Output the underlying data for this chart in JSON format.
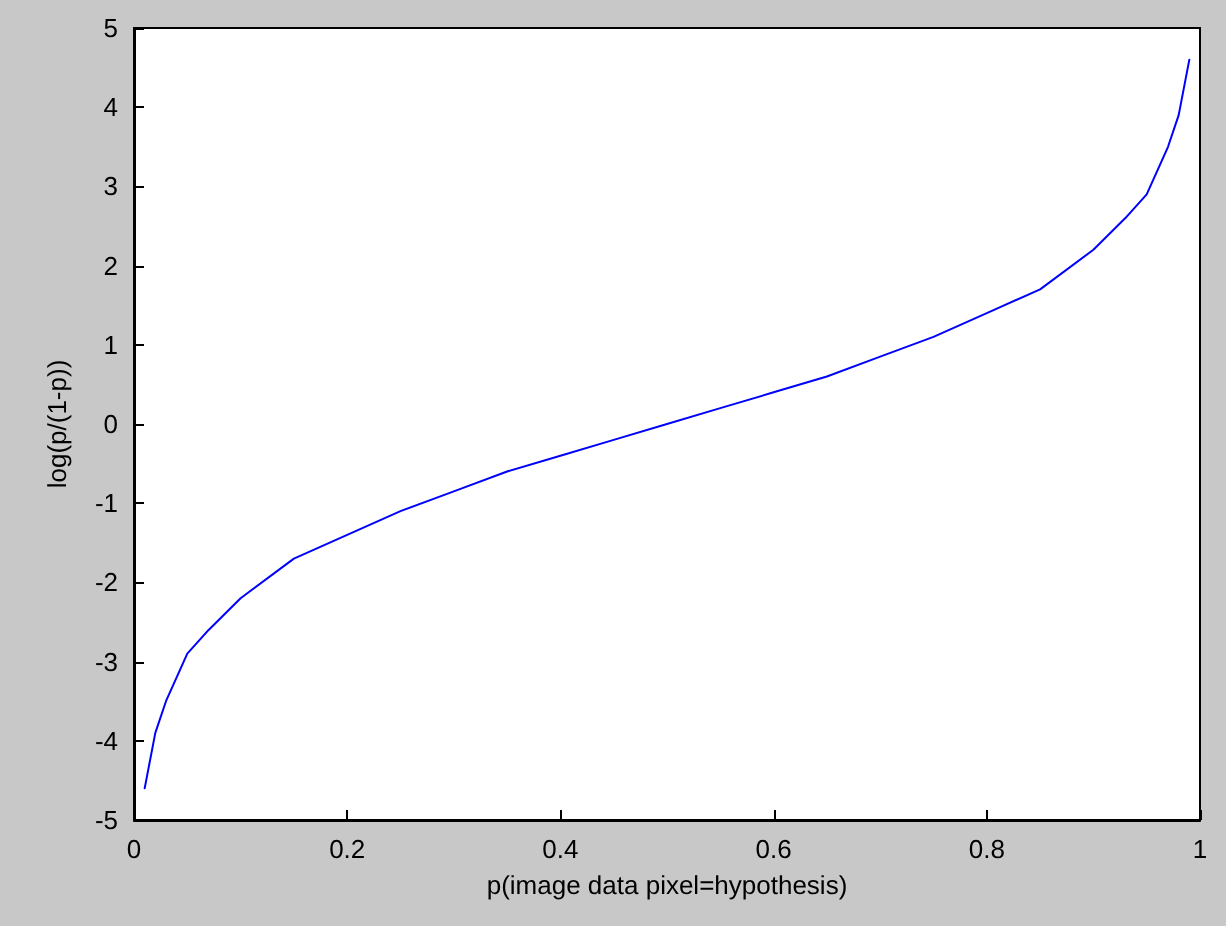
{
  "chart_data": {
    "type": "line",
    "xlabel": "p(image data pixel=hypothesis)",
    "ylabel": "log(p/(1-p))",
    "x": [
      0.01,
      0.02,
      0.03,
      0.05,
      0.07,
      0.1,
      0.15,
      0.2,
      0.25,
      0.3,
      0.35,
      0.4,
      0.45,
      0.5,
      0.55,
      0.6,
      0.65,
      0.7,
      0.75,
      0.8,
      0.85,
      0.9,
      0.93,
      0.95,
      0.97,
      0.98,
      0.99
    ],
    "series": [
      {
        "color": "#0000ff",
        "values": [
          -4.6,
          -3.9,
          -3.5,
          -2.9,
          -2.6,
          -2.2,
          -1.7,
          -1.4,
          -1.1,
          -0.85,
          -0.6,
          -0.4,
          -0.2,
          0,
          0.2,
          0.4,
          0.6,
          0.85,
          1.1,
          1.4,
          1.7,
          2.2,
          2.6,
          2.9,
          3.5,
          3.9,
          4.6
        ]
      }
    ],
    "xlim": [
      0,
      1
    ],
    "xticks": [
      0,
      0.2,
      0.4,
      0.6,
      0.8,
      1
    ],
    "ylim": [
      -5,
      5
    ],
    "yticks": [
      -5,
      -4,
      -3,
      -2,
      -1,
      0,
      1,
      2,
      3,
      4,
      5
    ],
    "marker": "none",
    "line_style": "solid"
  }
}
